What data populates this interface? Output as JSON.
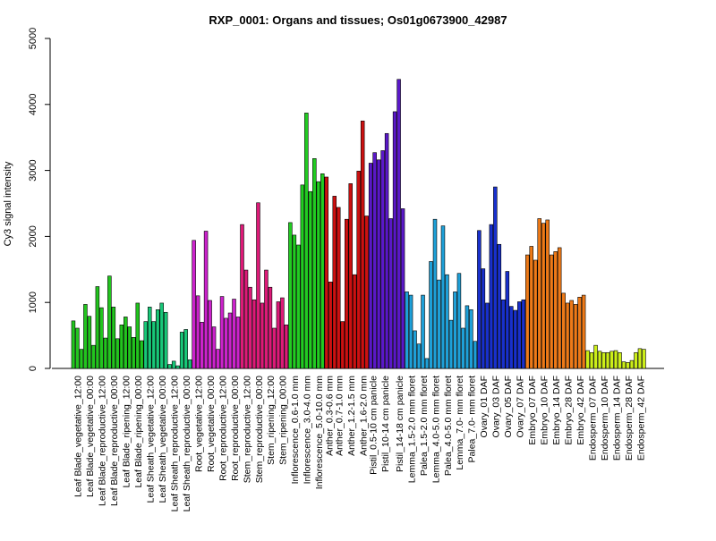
{
  "chart_data": {
    "type": "bar",
    "title": "RXP_0001: Organs and tissues; Os01g0673900_42987",
    "xlabel": "",
    "ylabel": "Cy3 signal intensity",
    "ylim": [
      0,
      5000
    ],
    "yticks": [
      0,
      1000,
      2000,
      3000,
      4000,
      5000
    ],
    "grid": false,
    "legend": "none",
    "groups": [
      {
        "label": "Leaf Blade_vegetative_12:00",
        "color": "#22c51e",
        "values": [
          720,
          610,
          290
        ]
      },
      {
        "label": "Leaf Blade_vegetative_00:00",
        "color": "#22c51e",
        "values": [
          970,
          790,
          350
        ]
      },
      {
        "label": "Leaf Blade_reproductive_12:00",
        "color": "#22c51e",
        "values": [
          1240,
          920,
          460
        ]
      },
      {
        "label": "Leaf Blade_reproductive_00:00",
        "color": "#22c51e",
        "values": [
          1400,
          930,
          450
        ]
      },
      {
        "label": "Leaf Blade_ripening_12:00",
        "color": "#22c51e",
        "values": [
          660,
          780,
          630
        ]
      },
      {
        "label": "Leaf Blade_ripening_00:00",
        "color": "#22c51e",
        "values": [
          470,
          990,
          420
        ]
      },
      {
        "label": "Leaf Sheath_vegetative_12:00",
        "color": "#18c878",
        "values": [
          710,
          930,
          710
        ]
      },
      {
        "label": "Leaf Sheath_vegetative_00:00",
        "color": "#18c878",
        "values": [
          890,
          990,
          850
        ]
      },
      {
        "label": "Leaf Sheath_reproductive_12:00",
        "color": "#18c878",
        "values": [
          60,
          110,
          40
        ]
      },
      {
        "label": "Leaf Sheath_reproductive_00:00",
        "color": "#18c878",
        "values": [
          550,
          590,
          130
        ]
      },
      {
        "label": "Root_vegetative_12:00",
        "color": "#cc22cc",
        "values": [
          1940,
          1100,
          700
        ]
      },
      {
        "label": "Root_vegetative_00:00",
        "color": "#cc22cc",
        "values": [
          2080,
          1030,
          630
        ]
      },
      {
        "label": "Root_reproductive_12:00",
        "color": "#cc22cc",
        "values": [
          290,
          1090,
          760
        ]
      },
      {
        "label": "Root_reproductive_00:00",
        "color": "#cc22cc",
        "values": [
          840,
          1050,
          780
        ]
      },
      {
        "label": "Stem_reproductive_12:00",
        "color": "#dd1a78",
        "values": [
          2180,
          1490,
          1230
        ]
      },
      {
        "label": "Stem_reproductive_00:00",
        "color": "#dd1a78",
        "values": [
          1040,
          2510,
          990
        ]
      },
      {
        "label": "Stem_ripening_12:00",
        "color": "#dd1a78",
        "values": [
          1490,
          1230,
          610
        ]
      },
      {
        "label": "Stem_ripening_00:00",
        "color": "#dd1a78",
        "values": [
          1010,
          1070,
          660
        ]
      },
      {
        "label": "Inflorescence_0.6-1.0 mm",
        "color": "#22cc22",
        "values": [
          2210,
          2020,
          1870
        ]
      },
      {
        "label": "Inflorescence_3.0-4.0 mm",
        "color": "#22cc22",
        "values": [
          2780,
          3870,
          2680
        ]
      },
      {
        "label": "Inflorescence_5.0-10.0 mm",
        "color": "#22cc22",
        "values": [
          3180,
          2830,
          2950
        ]
      },
      {
        "label": "Anther_0.3-0.6 mm",
        "color": "#cc1111",
        "values": [
          2900,
          1310
        ]
      },
      {
        "label": "Anther_0.7-1.0 mm",
        "color": "#cc1111",
        "values": [
          2610,
          2440,
          710
        ]
      },
      {
        "label": "Anther_1.2-1.5 mm",
        "color": "#cc1111",
        "values": [
          2260,
          2800,
          1420
        ]
      },
      {
        "label": "Anther_1.6-2.0 mm",
        "color": "#cc1111",
        "values": [
          2990,
          3750,
          2310
        ]
      },
      {
        "label": "Pistil_0.5-10 cm panicle",
        "color": "#5a18c8",
        "values": [
          3110,
          3270
        ]
      },
      {
        "label": "Pistil_10-14 cm panicle",
        "color": "#5a18c8",
        "values": [
          3160,
          3300,
          3560,
          2270
        ]
      },
      {
        "label": "Pistil_14-18 cm panicle",
        "color": "#5a18c8",
        "values": [
          3890,
          4380,
          2420
        ]
      },
      {
        "label": "Lemma_1.5-2.0 mm floret",
        "color": "#1ea0d8",
        "values": [
          1160,
          1110,
          570
        ]
      },
      {
        "label": "Palea_1.5-2.0 mm floret",
        "color": "#1ea0d8",
        "values": [
          370,
          1110,
          150
        ]
      },
      {
        "label": "Lemma_4.0-5.0 mm floret",
        "color": "#1ea0d8",
        "values": [
          1620,
          2260,
          1340
        ]
      },
      {
        "label": "Palea_4.0-5.0 mm floret",
        "color": "#1ea0d8",
        "values": [
          2160,
          1420,
          730
        ]
      },
      {
        "label": "Lemma_7.0- mm floret",
        "color": "#1ea0d8",
        "values": [
          1160,
          1440,
          610
        ]
      },
      {
        "label": "Palea_7.0- mm floret",
        "color": "#1ea0d8",
        "values": [
          950,
          890,
          410
        ]
      },
      {
        "label": "Ovary_01 DAF",
        "color": "#1830cc",
        "values": [
          2090,
          1510,
          990
        ]
      },
      {
        "label": "Ovary_03 DAF",
        "color": "#1830cc",
        "values": [
          2180,
          2750,
          1880
        ]
      },
      {
        "label": "Ovary_05 DAF",
        "color": "#1830cc",
        "values": [
          1040,
          1470,
          940
        ]
      },
      {
        "label": "Ovary_07 DAF",
        "color": "#1830cc",
        "values": [
          880,
          1010,
          1040
        ]
      },
      {
        "label": "Embryo_07 DAF",
        "color": "#ee7a18",
        "values": [
          1720,
          1850,
          1640
        ]
      },
      {
        "label": "Embryo_10 DAF",
        "color": "#ee7a18",
        "values": [
          2270,
          2200,
          2250
        ]
      },
      {
        "label": "Embryo_14 DAF",
        "color": "#ee7a18",
        "values": [
          1720,
          1770,
          1830
        ]
      },
      {
        "label": "Embryo_28 DAF",
        "color": "#ee7a18",
        "values": [
          1140,
          990,
          1030
        ]
      },
      {
        "label": "Embryo_42 DAF",
        "color": "#ee7a18",
        "values": [
          970,
          1080,
          1110
        ]
      },
      {
        "label": "Endosperm_07 DAF",
        "color": "#ccee18",
        "values": [
          270,
          240,
          350
        ]
      },
      {
        "label": "Endosperm_10 DAF",
        "color": "#ccee18",
        "values": [
          260,
          240,
          240
        ]
      },
      {
        "label": "Endosperm_14 DAF",
        "color": "#ccee18",
        "values": [
          260,
          270,
          240
        ]
      },
      {
        "label": "Endosperm_28 DAF",
        "color": "#ccee18",
        "values": [
          100,
          90,
          120
        ]
      },
      {
        "label": "Endosperm_42 DAF",
        "color": "#ccee18",
        "values": [
          240,
          300,
          290
        ]
      }
    ]
  }
}
